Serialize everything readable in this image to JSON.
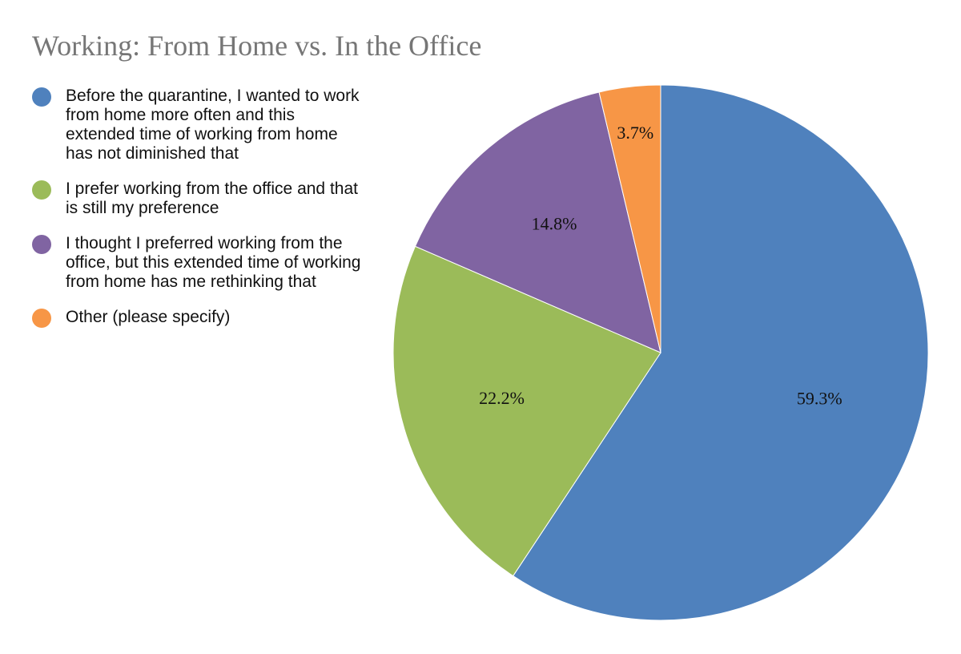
{
  "chart_data": {
    "type": "pie",
    "title": "Working: From Home vs. In the Office",
    "legend_placement": "left",
    "start_angle_deg": 0,
    "direction": "clockwise",
    "slices": [
      {
        "label": "Before the quarantine, I wanted to work from home more often and this extended time of working from home has not diminished that",
        "value": 59.3,
        "value_label": "59.3%",
        "color": "#4F81BD"
      },
      {
        "label": "I prefer working from the office and that is still my preference",
        "value": 22.2,
        "value_label": "22.2%",
        "color": "#9BBB59"
      },
      {
        "label": "I thought I preferred working from the office, but this extended time of working from home has me rethinking that",
        "value": 14.8,
        "value_label": "14.8%",
        "color": "#8064A2"
      },
      {
        "label": "Other (please specify)",
        "value": 3.7,
        "value_label": "3.7%",
        "color": "#F79646"
      }
    ]
  }
}
